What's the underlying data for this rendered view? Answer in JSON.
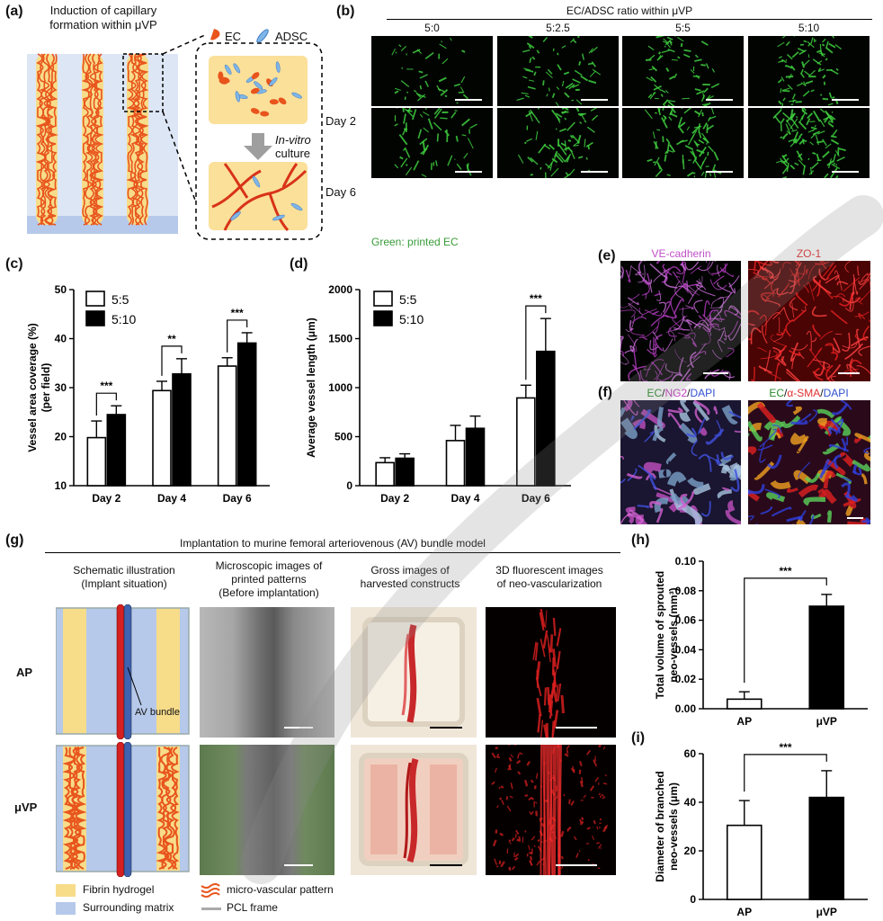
{
  "panel_a": {
    "label": "(a)",
    "title_line1": "Induction of capillary",
    "title_line2": "formation within μVP",
    "legend_ec": "EC",
    "legend_adsc": "ADSC",
    "culture_italic": "In-vitro",
    "culture_rest": "culture"
  },
  "panel_b": {
    "label": "(b)",
    "header": "EC/ADSC ratio within μVP",
    "ratios": [
      "5:0",
      "5:2.5",
      "5:5",
      "5:10"
    ],
    "rows": [
      "Day 2",
      "Day 6"
    ],
    "caption": "Green: printed EC"
  },
  "panel_e": {
    "label": "(e)",
    "titles": [
      "VE-cadherin",
      "ZO-1"
    ]
  },
  "panel_f": {
    "label": "(f)",
    "title1": {
      "a": "EC",
      "b": "/",
      "c": "NG2",
      "d": "/",
      "e": "DAPI"
    },
    "title2": {
      "a": "EC",
      "b": "/",
      "c": "α-SMA",
      "d": "/",
      "e": "DAPI"
    }
  },
  "panel_g": {
    "label": "(g)",
    "header": "Implantation to murine femoral arteriovenous (AV) bundle model",
    "col1": [
      "Schematic illustration",
      "(Implant situation)"
    ],
    "col2": [
      "Microscopic images of",
      "printed patterns",
      "(Before implantation)"
    ],
    "col3": [
      "Gross images of",
      "harvested constructs"
    ],
    "col4": [
      "3D fluorescent images",
      "of neo-vascularization"
    ],
    "rows": [
      "AP",
      "μVP"
    ],
    "av_label": "AV bundle",
    "legend": [
      "Fibrin hydrogel",
      "Surrounding matrix",
      "micro-vascular pattern",
      "PCL frame"
    ]
  },
  "colors": {
    "ec_green": "#3fcf3f",
    "red": "#d42020",
    "blue": "#3f62b0",
    "gel": "#f7dc8a",
    "matrix": "#b6c9ea",
    "vessel": "#e8541c"
  },
  "chart_data": [
    {
      "panel": "(c)",
      "type": "bar",
      "categories": [
        "Day 2",
        "Day 4",
        "Day 6"
      ],
      "series": [
        {
          "name": "5:5",
          "values": [
            19.8,
            29.4,
            34.4
          ],
          "errors": [
            3.4,
            1.9,
            1.7
          ]
        },
        {
          "name": "5:10",
          "values": [
            24.5,
            32.8,
            39.1
          ],
          "errors": [
            1.8,
            3.1,
            2.1
          ]
        }
      ],
      "ylabel_lines": [
        "Vessel area coverage (%)",
        "(per field)"
      ],
      "ylim": [
        10,
        50
      ],
      "yticks": [
        "10",
        "20",
        "30",
        "40",
        "50"
      ],
      "significance": [
        "***",
        "**",
        "***"
      ]
    },
    {
      "panel": "(d)",
      "type": "bar",
      "categories": [
        "Day 2",
        "Day 4",
        "Day 6"
      ],
      "series": [
        {
          "name": "5:5",
          "values": [
            235,
            460,
            895
          ],
          "errors": [
            50,
            155,
            130
          ]
        },
        {
          "name": "5:10",
          "values": [
            280,
            585,
            1370
          ],
          "errors": [
            45,
            125,
            335
          ]
        }
      ],
      "ylabel_lines": [
        "Average vessel length (μm)"
      ],
      "ylim": [
        0,
        2000
      ],
      "yticks": [
        "0",
        "500",
        "1000",
        "1500",
        "2000"
      ],
      "significance": [
        "",
        "",
        "***"
      ]
    },
    {
      "panel": "(h)",
      "type": "bar",
      "categories": [
        "AP",
        "μVP"
      ],
      "series": [
        {
          "values": [
            0.0065,
            0.0695
          ],
          "errors": [
            0.005,
            0.008
          ]
        }
      ],
      "ylabel_lines": [
        "Total volume of sprouted",
        "neo-vessels (mm³)"
      ],
      "ylim": [
        0,
        0.1
      ],
      "yticks": [
        "0.00",
        "0.02",
        "0.04",
        "0.06",
        "0.08",
        "0.10"
      ],
      "significance": [
        "***"
      ]
    },
    {
      "panel": "(i)",
      "type": "bar",
      "categories": [
        "AP",
        "μVP"
      ],
      "series": [
        {
          "values": [
            30.5,
            42
          ],
          "errors": [
            10.2,
            11
          ]
        }
      ],
      "ylabel_lines": [
        "Diameter of branched",
        "neo-vessels (μm)"
      ],
      "ylim": [
        0,
        60
      ],
      "yticks": [
        "0",
        "20",
        "40",
        "60"
      ],
      "significance": [
        "***"
      ]
    }
  ]
}
